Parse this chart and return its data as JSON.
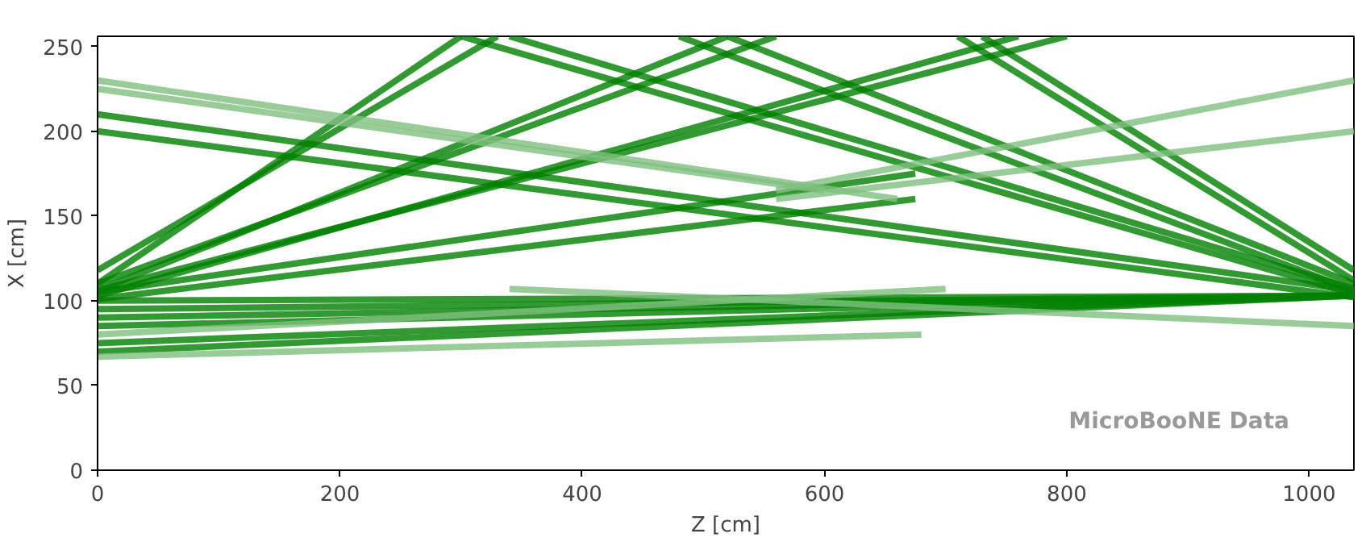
{
  "chart_data": {
    "type": "line",
    "xlabel": "Z [cm]",
    "ylabel": "X [cm]",
    "xlim": [
      0,
      1037
    ],
    "ylim": [
      0,
      256
    ],
    "xticks": [
      0,
      200,
      400,
      600,
      800,
      1000
    ],
    "yticks": [
      0,
      50,
      100,
      150,
      200,
      250
    ],
    "grid": false,
    "annotations": [
      "MicroBooNE Data"
    ],
    "series": [
      {
        "color": "#007f00",
        "x": [
          0,
          300
        ],
        "values": [
          110,
          256
        ]
      },
      {
        "color": "#007f00",
        "x": [
          0,
          330
        ],
        "values": [
          118,
          256
        ]
      },
      {
        "color": "#007f00",
        "x": [
          0,
          520
        ],
        "values": [
          106,
          256
        ]
      },
      {
        "color": "#007f00",
        "x": [
          0,
          560
        ],
        "values": [
          110,
          256
        ]
      },
      {
        "color": "#007f00",
        "x": [
          0,
          760
        ],
        "values": [
          103,
          256
        ]
      },
      {
        "color": "#007f00",
        "x": [
          0,
          800
        ],
        "values": [
          106,
          256
        ]
      },
      {
        "color": "#007f00",
        "x": [
          0,
          675
        ],
        "values": [
          101,
          160
        ]
      },
      {
        "color": "#007f00",
        "x": [
          0,
          675
        ],
        "values": [
          105,
          175
        ]
      },
      {
        "color": "#007f00",
        "x": [
          1037,
          710
        ],
        "values": [
          112,
          256
        ]
      },
      {
        "color": "#007f00",
        "x": [
          1037,
          730
        ],
        "values": [
          118,
          256
        ]
      },
      {
        "color": "#007f00",
        "x": [
          1037,
          480
        ],
        "values": [
          106,
          256
        ]
      },
      {
        "color": "#007f00",
        "x": [
          1037,
          520
        ],
        "values": [
          110,
          256
        ]
      },
      {
        "color": "#007f00",
        "x": [
          1037,
          300
        ],
        "values": [
          104,
          256
        ]
      },
      {
        "color": "#007f00",
        "x": [
          1037,
          340
        ],
        "values": [
          107,
          256
        ]
      },
      {
        "color": "#007f00",
        "x": [
          1037,
          0
        ],
        "values": [
          102,
          200
        ]
      },
      {
        "color": "#007f00",
        "x": [
          1037,
          0
        ],
        "values": [
          106,
          210
        ]
      },
      {
        "color": "#007f00",
        "x": [
          0,
          1037
        ],
        "values": [
          100,
          103
        ]
      },
      {
        "color": "#007f00",
        "x": [
          0,
          1037
        ],
        "values": [
          95,
          103
        ]
      },
      {
        "color": "#007f00",
        "x": [
          0,
          1037
        ],
        "values": [
          90,
          103
        ]
      },
      {
        "color": "#007f00",
        "x": [
          0,
          1037
        ],
        "values": [
          85,
          103
        ]
      },
      {
        "color": "#007f00",
        "x": [
          0,
          1037
        ],
        "values": [
          75,
          103
        ]
      },
      {
        "color": "#007f00",
        "x": [
          0,
          1037
        ],
        "values": [
          70,
          103
        ]
      },
      {
        "color": "#7fbf7f",
        "x": [
          0,
          600
        ],
        "values": [
          225,
          165
        ]
      },
      {
        "color": "#7fbf7f",
        "x": [
          0,
          660
        ],
        "values": [
          230,
          160
        ]
      },
      {
        "color": "#7fbf7f",
        "x": [
          0,
          700
        ],
        "values": [
          80,
          107
        ]
      },
      {
        "color": "#7fbf7f",
        "x": [
          0,
          680
        ],
        "values": [
          67,
          80
        ]
      },
      {
        "color": "#7fbf7f",
        "x": [
          340,
          1037
        ],
        "values": [
          107,
          85
        ]
      },
      {
        "color": "#7fbf7f",
        "x": [
          1037,
          560
        ],
        "values": [
          230,
          165
        ]
      },
      {
        "color": "#7fbf7f",
        "x": [
          1037,
          560
        ],
        "values": [
          200,
          160
        ]
      }
    ]
  }
}
